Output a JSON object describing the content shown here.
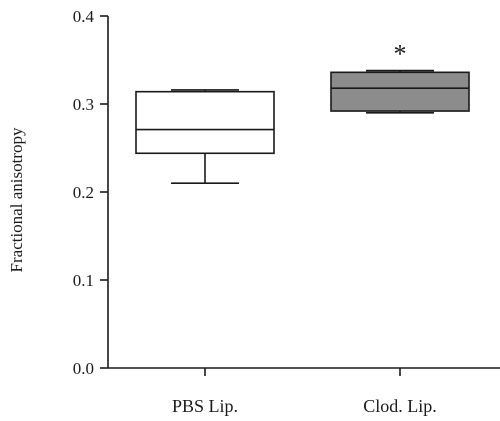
{
  "chart_data": {
    "type": "box",
    "ylabel": "Fractional anisotropy",
    "xlabel": "",
    "ylim": [
      0,
      0.4
    ],
    "yticks": [
      "0.0",
      "0.1",
      "0.2",
      "0.3",
      "0.4"
    ],
    "categories": [
      "PBS Lip.",
      "Clod. Lip."
    ],
    "boxes": [
      {
        "category": "PBS Lip.",
        "whisker_low": 0.21,
        "q1": 0.244,
        "median": 0.271,
        "q3": 0.314,
        "whisker_high": 0.316,
        "fill": "#ffffff",
        "annotation": ""
      },
      {
        "category": "Clod. Lip.",
        "whisker_low": 0.29,
        "q1": 0.292,
        "median": 0.318,
        "q3": 0.336,
        "whisker_high": 0.338,
        "fill": "#8c8c8c",
        "annotation": "*"
      }
    ],
    "grid": false
  }
}
